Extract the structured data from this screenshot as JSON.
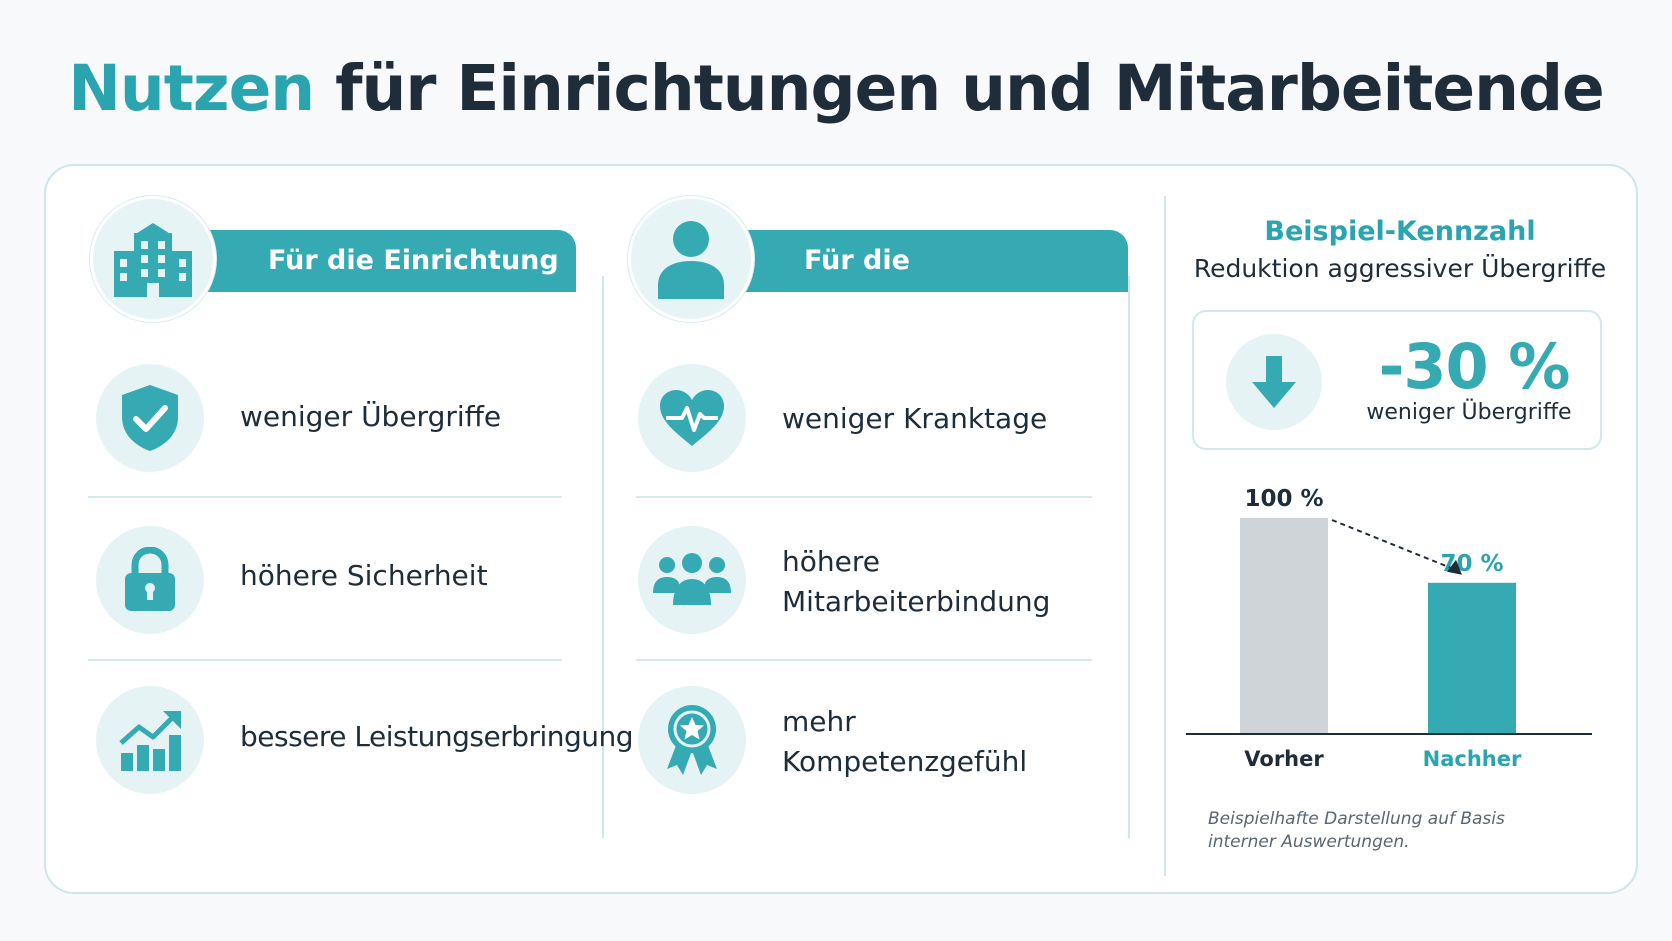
{
  "title": {
    "accent": "Nutzen",
    "rest": " für Einrichtungen und Mitarbeitende"
  },
  "colors": {
    "accent": "#35aab3",
    "accent_text": "#2aa4ae",
    "dark": "#1f2d3a",
    "bar_before": "#cfd4d8"
  },
  "einrichtung": {
    "header": "Für die Einrichtung",
    "header_icon": "building-icon",
    "items": [
      {
        "icon": "shield-check-icon",
        "label": "weniger Übergriffe"
      },
      {
        "icon": "lock-icon",
        "label": "höhere Sicherheit"
      },
      {
        "icon": "growth-chart-icon",
        "label": "bessere Leistungserbringung"
      }
    ]
  },
  "mitarbeitende": {
    "header": "Für die Mitarbeitenden",
    "header_icon": "person-icon",
    "items": [
      {
        "icon": "heartbeat-icon",
        "label_line1": "weniger Kranktage",
        "label_line2": ""
      },
      {
        "icon": "team-icon",
        "label_line1": "höhere",
        "label_line2": "Mitarbeiterbindung"
      },
      {
        "icon": "award-icon",
        "label_line1": "mehr",
        "label_line2": "Kompetenzgefühl"
      }
    ]
  },
  "kennzahl": {
    "title": "Beispiel-Kennzahl",
    "subtitle": "Reduktion aggressiver Übergriffe",
    "big_value": "-30 %",
    "big_label": "weniger Übergriffe",
    "icon": "arrow-down-icon",
    "note_line1": "Beispielhafte Darstellung auf Basis",
    "note_line2": "interner Auswertungen."
  },
  "chart_data": {
    "type": "bar",
    "categories": [
      "Vorher",
      "Nachher"
    ],
    "values": [
      100,
      70
    ],
    "value_labels": [
      "100 %",
      "70 %"
    ],
    "colors": [
      "#cfd4d8",
      "#35aab3"
    ],
    "ylim": [
      0,
      100
    ]
  }
}
